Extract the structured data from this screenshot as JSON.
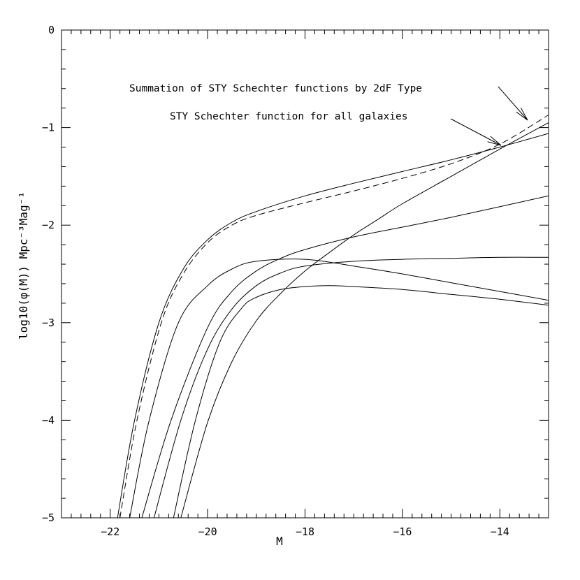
{
  "chart_data": {
    "type": "line",
    "xlabel": "M",
    "ylabel": "log10(φ(M)) Mpc⁻³Mag⁻¹",
    "xlim": [
      -23,
      -13
    ],
    "ylim": [
      -5,
      0
    ],
    "xticks": [
      -22,
      -20,
      -18,
      -16,
      -14
    ],
    "yticks": [
      0,
      -1,
      -2,
      -3,
      -4,
      -5
    ],
    "xtick_labels": [
      "−22",
      "−20",
      "−18",
      "−16",
      "−14"
    ],
    "ytick_labels": [
      "0",
      "−1",
      "−2",
      "−3",
      "−4",
      "−5"
    ],
    "grid": false,
    "annotations": [
      {
        "text": "Summation of STY Schechter functions by 2dF Type",
        "points_to": "dashed summation curve at M ≈ -13.4"
      },
      {
        "text": "STY Schechter function for all galaxies",
        "points_to": "solid all-galaxy curve at M ≈ -14.0"
      }
    ],
    "series": [
      {
        "style": "solid",
        "points": [
          [
            -21.85,
            -5.0
          ],
          [
            -21.5,
            -4.0
          ],
          [
            -21.0,
            -3.0
          ],
          [
            -20.5,
            -2.45
          ],
          [
            -20.0,
            -2.15
          ],
          [
            -19.5,
            -1.97
          ],
          [
            -19.0,
            -1.86
          ],
          [
            -18.0,
            -1.7
          ],
          [
            -17.0,
            -1.57
          ],
          [
            -16.0,
            -1.45
          ],
          [
            -15.0,
            -1.33
          ],
          [
            -14.0,
            -1.2
          ],
          [
            -13.0,
            -1.06
          ]
        ]
      },
      {
        "style": "dashed",
        "points": [
          [
            -21.8,
            -5.0
          ],
          [
            -21.45,
            -4.0
          ],
          [
            -20.95,
            -3.0
          ],
          [
            -20.5,
            -2.5
          ],
          [
            -20.0,
            -2.18
          ],
          [
            -19.5,
            -2.0
          ],
          [
            -19.0,
            -1.9
          ],
          [
            -18.0,
            -1.77
          ],
          [
            -17.0,
            -1.65
          ],
          [
            -16.0,
            -1.52
          ],
          [
            -15.0,
            -1.37
          ],
          [
            -14.0,
            -1.17
          ],
          [
            -13.0,
            -0.87
          ]
        ]
      },
      {
        "style": "solid",
        "points": [
          [
            -21.6,
            -5.0
          ],
          [
            -21.2,
            -4.0
          ],
          [
            -20.6,
            -3.0
          ],
          [
            -20.0,
            -2.62
          ],
          [
            -19.5,
            -2.45
          ],
          [
            -19.0,
            -2.37
          ],
          [
            -18.0,
            -2.35
          ],
          [
            -17.0,
            -2.42
          ],
          [
            -16.0,
            -2.5
          ],
          [
            -15.0,
            -2.59
          ],
          [
            -14.0,
            -2.68
          ],
          [
            -13.0,
            -2.77
          ]
        ]
      },
      {
        "style": "solid",
        "points": [
          [
            -21.35,
            -5.0
          ],
          [
            -20.75,
            -4.0
          ],
          [
            -20.0,
            -3.05
          ],
          [
            -19.5,
            -2.68
          ],
          [
            -19.0,
            -2.47
          ],
          [
            -18.5,
            -2.34
          ],
          [
            -18.0,
            -2.25
          ],
          [
            -17.0,
            -2.12
          ],
          [
            -16.0,
            -2.02
          ],
          [
            -15.0,
            -1.92
          ],
          [
            -14.0,
            -1.81
          ],
          [
            -13.0,
            -1.7
          ]
        ]
      },
      {
        "style": "solid",
        "points": [
          [
            -21.1,
            -5.0
          ],
          [
            -20.55,
            -4.0
          ],
          [
            -20.0,
            -3.27
          ],
          [
            -19.5,
            -2.86
          ],
          [
            -19.0,
            -2.62
          ],
          [
            -18.5,
            -2.49
          ],
          [
            -18.0,
            -2.42
          ],
          [
            -17.0,
            -2.37
          ],
          [
            -16.0,
            -2.35
          ],
          [
            -15.0,
            -2.34
          ],
          [
            -14.0,
            -2.33
          ],
          [
            -13.0,
            -2.33
          ]
        ]
      },
      {
        "style": "solid",
        "points": [
          [
            -20.7,
            -5.0
          ],
          [
            -20.25,
            -4.0
          ],
          [
            -19.75,
            -3.2
          ],
          [
            -19.3,
            -2.85
          ],
          [
            -19.0,
            -2.74
          ],
          [
            -18.5,
            -2.66
          ],
          [
            -18.0,
            -2.63
          ],
          [
            -17.5,
            -2.62
          ],
          [
            -17.0,
            -2.63
          ],
          [
            -16.0,
            -2.66
          ],
          [
            -15.0,
            -2.71
          ],
          [
            -14.0,
            -2.76
          ],
          [
            -13.0,
            -2.82
          ]
        ]
      },
      {
        "style": "solid",
        "points": [
          [
            -20.55,
            -5.0
          ],
          [
            -20.0,
            -4.02
          ],
          [
            -19.5,
            -3.4
          ],
          [
            -19.0,
            -2.98
          ],
          [
            -18.5,
            -2.7
          ],
          [
            -18.0,
            -2.47
          ],
          [
            -17.5,
            -2.28
          ],
          [
            -17.0,
            -2.1
          ],
          [
            -16.5,
            -1.94
          ],
          [
            -16.0,
            -1.78
          ],
          [
            -15.0,
            -1.5
          ],
          [
            -14.0,
            -1.22
          ],
          [
            -13.0,
            -0.95
          ]
        ]
      }
    ]
  }
}
